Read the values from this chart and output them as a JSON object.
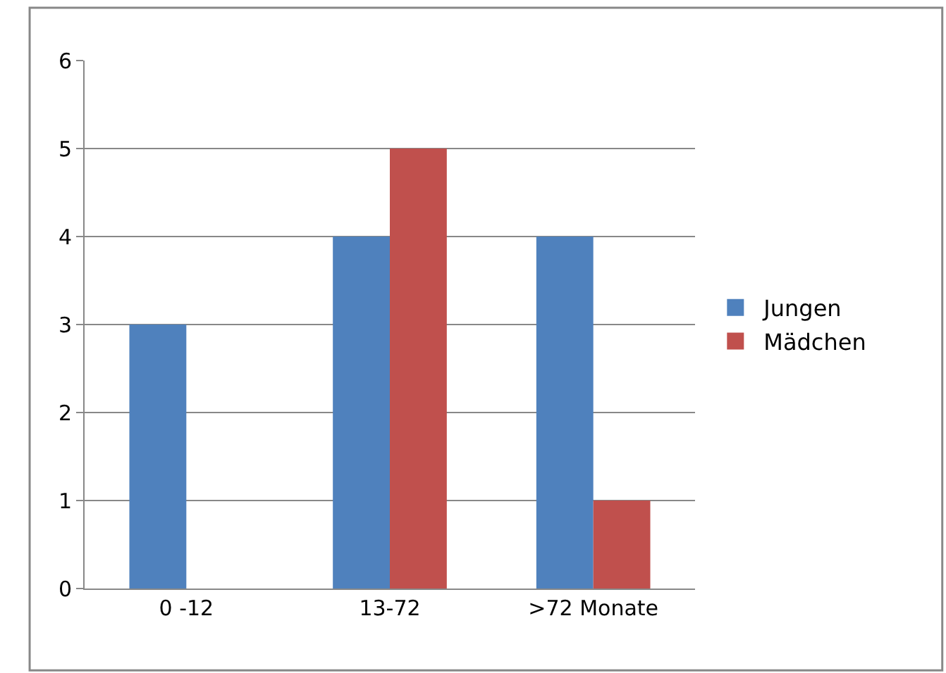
{
  "chart_data": {
    "type": "bar",
    "categories": [
      "0 -12",
      "13-72",
      ">72 Monate"
    ],
    "series": [
      {
        "name": "Jungen",
        "color": "#4f81bd",
        "values": [
          3,
          4,
          4
        ]
      },
      {
        "name": "Mädchen",
        "color": "#c0504d",
        "values": [
          0,
          5,
          1
        ]
      }
    ],
    "ylim": [
      0,
      6
    ],
    "yticks": [
      0,
      1,
      2,
      3,
      4,
      5,
      6
    ],
    "grid": "y",
    "legend": "right"
  }
}
